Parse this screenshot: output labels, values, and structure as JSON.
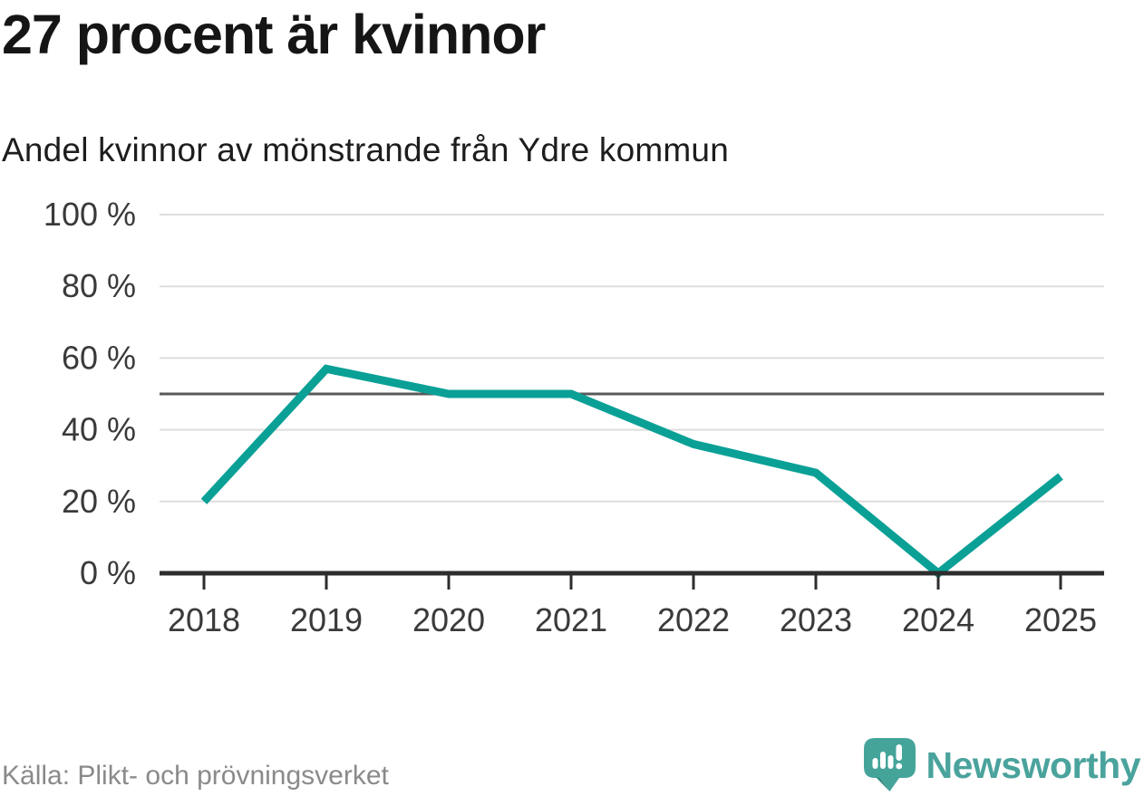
{
  "header": {
    "title": "27 procent är kvinnor",
    "subtitle": "Andel kvinnor av mönstrande från Ydre kommun"
  },
  "footer": {
    "source": "Källa: Plikt- och prövningsverket",
    "brand": "Newsworthy"
  },
  "colors": {
    "line": "#0aa096",
    "reference_line": "#58595b",
    "gridline": "#dedede",
    "axis": "#2d2d2d",
    "tick_label": "#3a3a3a",
    "title": "#151515",
    "subtitle": "#1d1d1d",
    "source": "#8a8a8a",
    "brand_teal": "#4aa39c",
    "logo_icon": "#44a49a",
    "logo_icon_shade": "#2f8d84"
  },
  "chart_data": {
    "type": "line",
    "title": "27 procent är kvinnor",
    "subtitle": "Andel kvinnor av mönstrande från Ydre kommun",
    "categories": [
      "2018",
      "2019",
      "2020",
      "2021",
      "2022",
      "2023",
      "2024",
      "2025"
    ],
    "series": [
      {
        "name": "Andel kvinnor av mönstrande",
        "values": [
          20,
          57,
          50,
          50,
          36,
          28,
          0,
          27
        ]
      }
    ],
    "unit": "%",
    "ylim": [
      0,
      100
    ],
    "yticks": [
      0,
      20,
      40,
      60,
      80,
      100
    ],
    "ytick_labels": [
      "0 %",
      "20 %",
      "40 %",
      "60 %",
      "80 %",
      "100 %"
    ],
    "reference_line": 50,
    "grid": "horizontal",
    "legend": "none",
    "source": "Källa: Plikt- och prövningsverket"
  }
}
